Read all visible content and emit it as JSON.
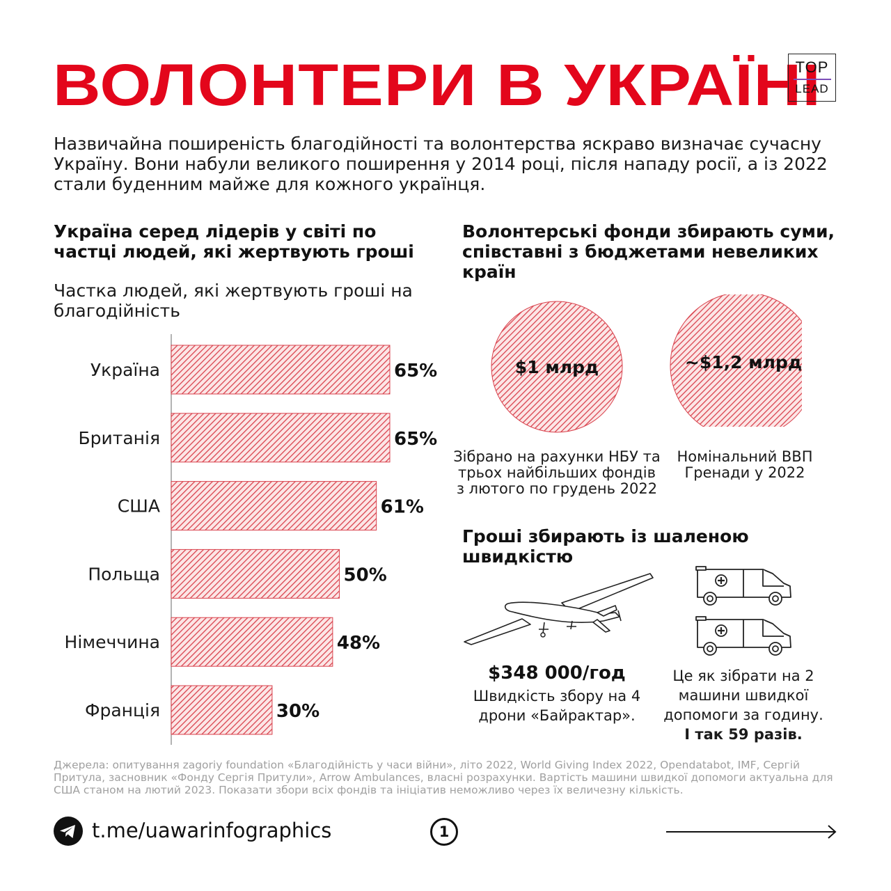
{
  "title": "ВОЛОНТЕРИ В УКРАЇНІ",
  "logo": {
    "top": "TOP",
    "bottom": "LEAD"
  },
  "intro": "Назвичайна поширеність благодійності та волонтерства яскраво визначає сучасну Україну. Вони набули великого поширення у 2014 році, після нападу росії, а із 2022 стали буденним майже для кожного українця.",
  "left_section": {
    "heading": "Україна серед лідерів у світі по частці людей, які жертвують гроші"
  },
  "chart_data": {
    "type": "bar",
    "orientation": "horizontal",
    "title": "Частка людей, які жертвують гроші на благодійність",
    "categories": [
      "Україна",
      "Британія",
      "США",
      "Польща",
      "Німеччина",
      "Франція"
    ],
    "values": [
      65,
      65,
      61,
      50,
      48,
      30
    ],
    "value_labels": [
      "65%",
      "65%",
      "61%",
      "50%",
      "48%",
      "30%"
    ],
    "unit": "%",
    "xlim": [
      0,
      65
    ],
    "bar_fill": "hatched-red"
  },
  "right_section": {
    "heading": "Волонтерські фонди збирають суми, співставні з бюджетами невеликих країн",
    "circles": [
      {
        "value": "$1 млрд",
        "caption": "Зібрано на рахунки НБУ та трьох найбільших фондів з лютого по грудень 2022"
      },
      {
        "value": "~$1,2 млрд",
        "caption": "Номінальний ВВП Гренади у 2022"
      }
    ]
  },
  "speed_section": {
    "heading": "Гроші збирають із шаленою швидкістю",
    "drone_value": "$348 000/год",
    "drone_desc": "Швидкість збору на 4 дрони «Байрактар».",
    "ambulance_desc": "Це як зібрати на 2 машини швидкої допомоги за годину.",
    "ambulance_emph": "І так 59 разів."
  },
  "sources": "Джерела: опитування zagoriy foundation «Благодійність у часи війни», літо 2022, World Giving Index 2022, Opendatabot, IMF, Сергій Притула, засновник «Фонду Сергія Притули», Arrow Ambulances, власні розрахунки. Вартість машини швидкої допомоги актуальна для США станом на лютий 2023. Показати збори всіх фондів та ініціатив неможливо через їх величезну кількість.",
  "footer": {
    "link": "t.me/uawarinfographics",
    "page": "1"
  },
  "colors": {
    "accent": "#e3061b",
    "hatch": "#d9424d",
    "hatch_bg": "#fce6e6",
    "text": "#111111",
    "muted": "#a0a0a0"
  }
}
